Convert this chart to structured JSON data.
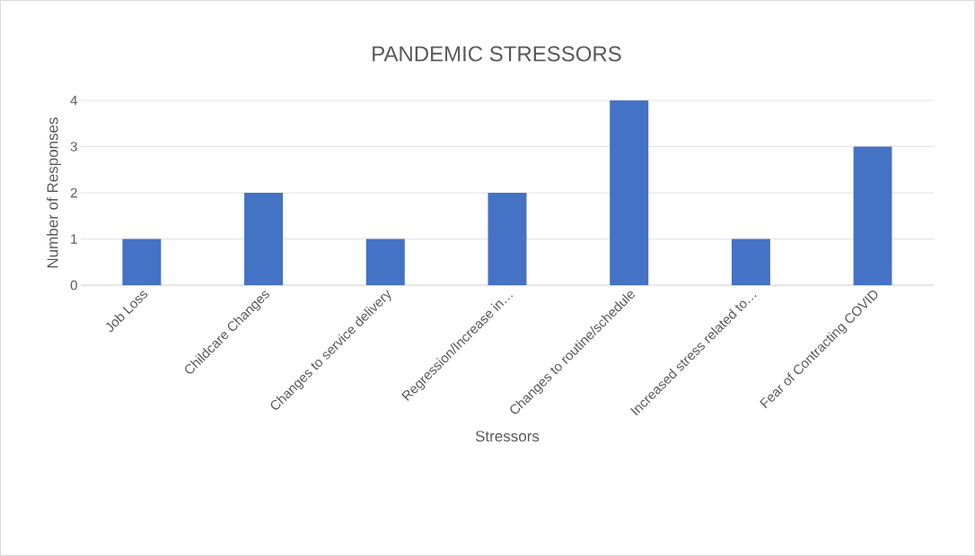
{
  "chart_data": {
    "type": "bar",
    "title": "PANDEMIC STRESSORS",
    "xlabel": "Stressors",
    "ylabel": "Number of Responses",
    "categories": [
      "Job Loss",
      "Childcare Changes",
      "Changes to service delivery",
      "Regression/Increase in…",
      "Changes to routine/schedule",
      "Increased stress related to…",
      "Fear of Contracting COVID"
    ],
    "values": [
      1,
      2,
      1,
      2,
      4,
      1,
      3
    ],
    "color": "#4472c4",
    "ylim": [
      0,
      4
    ],
    "yticks": [
      0,
      1,
      2,
      3,
      4
    ],
    "grid": "y"
  }
}
